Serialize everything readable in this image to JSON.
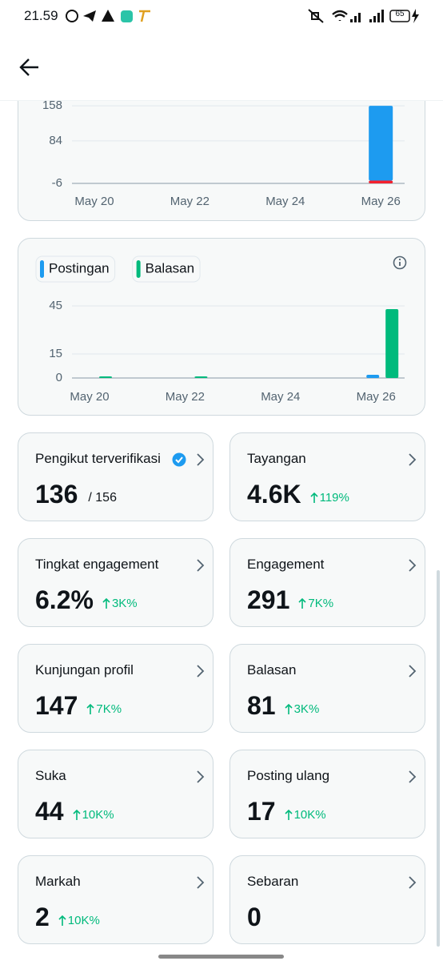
{
  "status_bar": {
    "time": "21.59",
    "battery": "65"
  },
  "chart_data": [
    {
      "type": "bar",
      "stacked": true,
      "categories": [
        "May 20",
        null,
        "May 22",
        null,
        "May 24",
        null,
        "May 26"
      ],
      "series": [
        {
          "color": "#1d9bf0",
          "values": [
            0,
            0,
            0,
            0,
            0,
            0,
            158
          ]
        },
        {
          "color": "#f4212e",
          "values": [
            0,
            0,
            0,
            0,
            0,
            0,
            -6
          ]
        }
      ],
      "ylim": [
        -6,
        165
      ],
      "yticks": [
        158,
        84,
        -6
      ],
      "grid": true
    },
    {
      "type": "bar",
      "stacked": false,
      "legend": "top-left",
      "categories": [
        "May 20",
        null,
        "May 22",
        null,
        "May 24",
        null,
        "May 26"
      ],
      "series": [
        {
          "name": "Postingan",
          "color": "#1d9bf0",
          "values": [
            0,
            0,
            0,
            0,
            0,
            0,
            2
          ]
        },
        {
          "name": "Balasan",
          "color": "#00ba7c",
          "values": [
            1,
            0,
            1,
            0,
            0,
            0,
            43
          ]
        }
      ],
      "ylim": [
        0,
        46
      ],
      "yticks": [
        45,
        15,
        0
      ],
      "grid": true
    }
  ],
  "cards": [
    {
      "title": "Pengikut terverifikasi",
      "verified": true,
      "value": "136",
      "total": "/ 156"
    },
    {
      "title": "Tayangan",
      "value": "4.6K",
      "change": "119%"
    },
    {
      "title": "Tingkat engagement",
      "value": "6.2%",
      "change": "3K%"
    },
    {
      "title": "Engagement",
      "value": "291",
      "change": "7K%"
    },
    {
      "title": "Kunjungan profil",
      "value": "147",
      "change": "7K%"
    },
    {
      "title": "Balasan",
      "value": "81",
      "change": "3K%"
    },
    {
      "title": "Suka",
      "value": "44",
      "change": "10K%"
    },
    {
      "title": "Posting ulang",
      "value": "17",
      "change": "10K%"
    },
    {
      "title": "Markah",
      "value": "2",
      "change": "10K%"
    },
    {
      "title": "Sebaran",
      "value": "0"
    }
  ]
}
